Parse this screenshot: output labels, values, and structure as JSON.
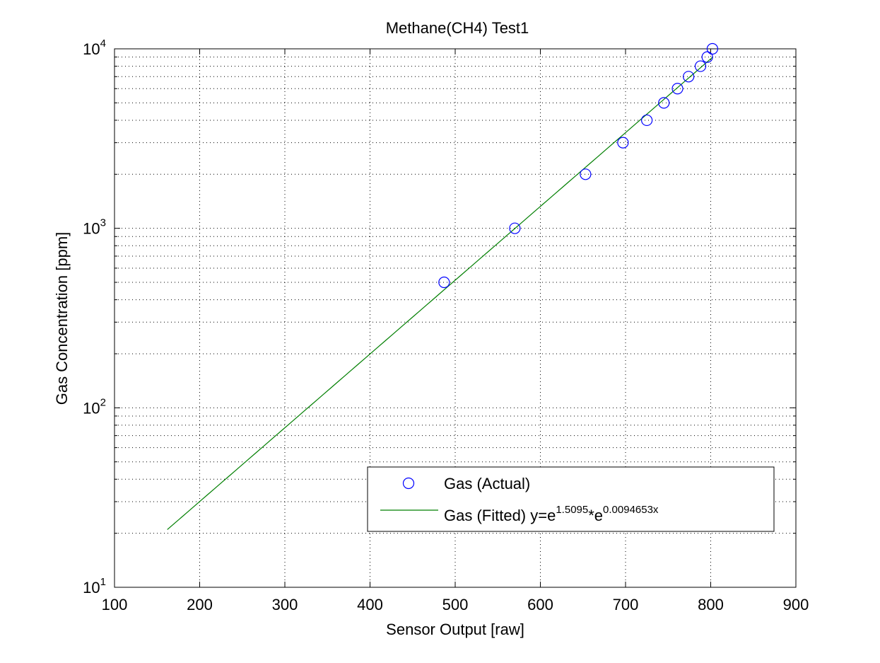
{
  "chart_data": {
    "type": "scatter",
    "title": "Methane(CH4) Test1",
    "xlabel": "Sensor Output [raw]",
    "ylabel": "Gas Concentration [ppm]",
    "xlim": [
      100,
      900
    ],
    "ylim": [
      10,
      10000
    ],
    "yscale": "log",
    "grid": true,
    "legend_position": "bottom-right",
    "x_ticks": [
      100,
      200,
      300,
      400,
      500,
      600,
      700,
      800,
      900
    ],
    "x_tick_labels": [
      "100",
      "200",
      "300",
      "400",
      "500",
      "600",
      "700",
      "800",
      "900"
    ],
    "y_ticks": [
      10,
      100,
      1000,
      10000
    ],
    "y_tick_labels": [
      {
        "base": "10",
        "exp": "1"
      },
      {
        "base": "10",
        "exp": "2"
      },
      {
        "base": "10",
        "exp": "3"
      },
      {
        "base": "10",
        "exp": "4"
      }
    ],
    "series": [
      {
        "name": "Gas (Actual)",
        "kind": "markers",
        "marker": "circle",
        "color": "#0000ff",
        "x": [
          487,
          570,
          653,
          697,
          725,
          745,
          761,
          774,
          788,
          796,
          802
        ],
        "y": [
          500,
          1000,
          2000,
          3000,
          4000,
          5000,
          6000,
          7000,
          8000,
          9000,
          10000
        ]
      },
      {
        "name": "Gas (Fitted) y=e^1.5095*e^0.0094653x",
        "kind": "line",
        "color": "#007f00",
        "coef_a": 1.5095,
        "coef_b": 0.0094653,
        "x_range": [
          162,
          802
        ]
      }
    ],
    "legend": {
      "actual_label": "Gas (Actual)",
      "fitted_prefix": "Gas (Fitted) y=e",
      "fitted_exp1": "1.5095",
      "fitted_mid": "*e",
      "fitted_exp2": "0.0094653x"
    }
  }
}
